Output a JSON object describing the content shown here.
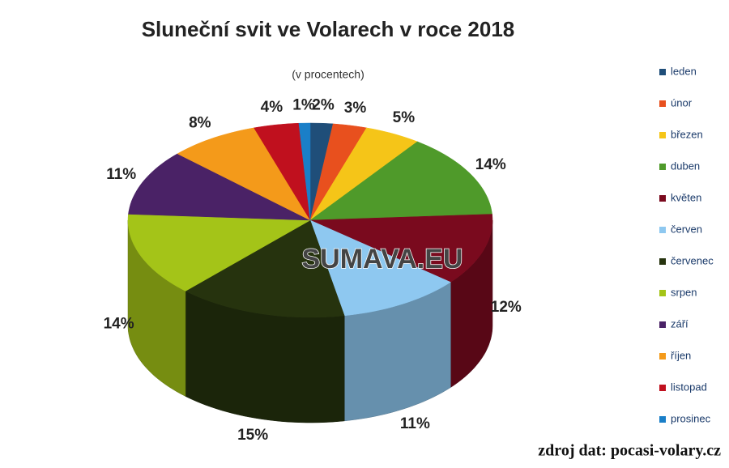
{
  "chart_data": {
    "type": "pie3d",
    "title": "Sluneční svit ve Volarech v roce 2018",
    "subtitle": "(v procentech)",
    "source": "zdroj dat: pocasi-volary.cz",
    "watermark": "SUMAVA.EU",
    "categories": [
      "leden",
      "únor",
      "březen",
      "duben",
      "květen",
      "červen",
      "červenec",
      "srpen",
      "září",
      "říjen",
      "listopad",
      "prosinec"
    ],
    "values": [
      2,
      3,
      5,
      14,
      12,
      11,
      15,
      14,
      11,
      8,
      4,
      1
    ],
    "value_labels": [
      "2%",
      "3%",
      "5%",
      "14%",
      "12%",
      "11%",
      "15%",
      "14%",
      "11%",
      "8%",
      "4%",
      "1%"
    ],
    "colors": [
      "#1f4e79",
      "#e8501e",
      "#f5c518",
      "#4f9a2a",
      "#7a0a1e",
      "#8ec8f0",
      "#26330e",
      "#a4c418",
      "#4a2266",
      "#f49a1a",
      "#c0101e",
      "#1a7fc8"
    ],
    "legend": "right"
  }
}
